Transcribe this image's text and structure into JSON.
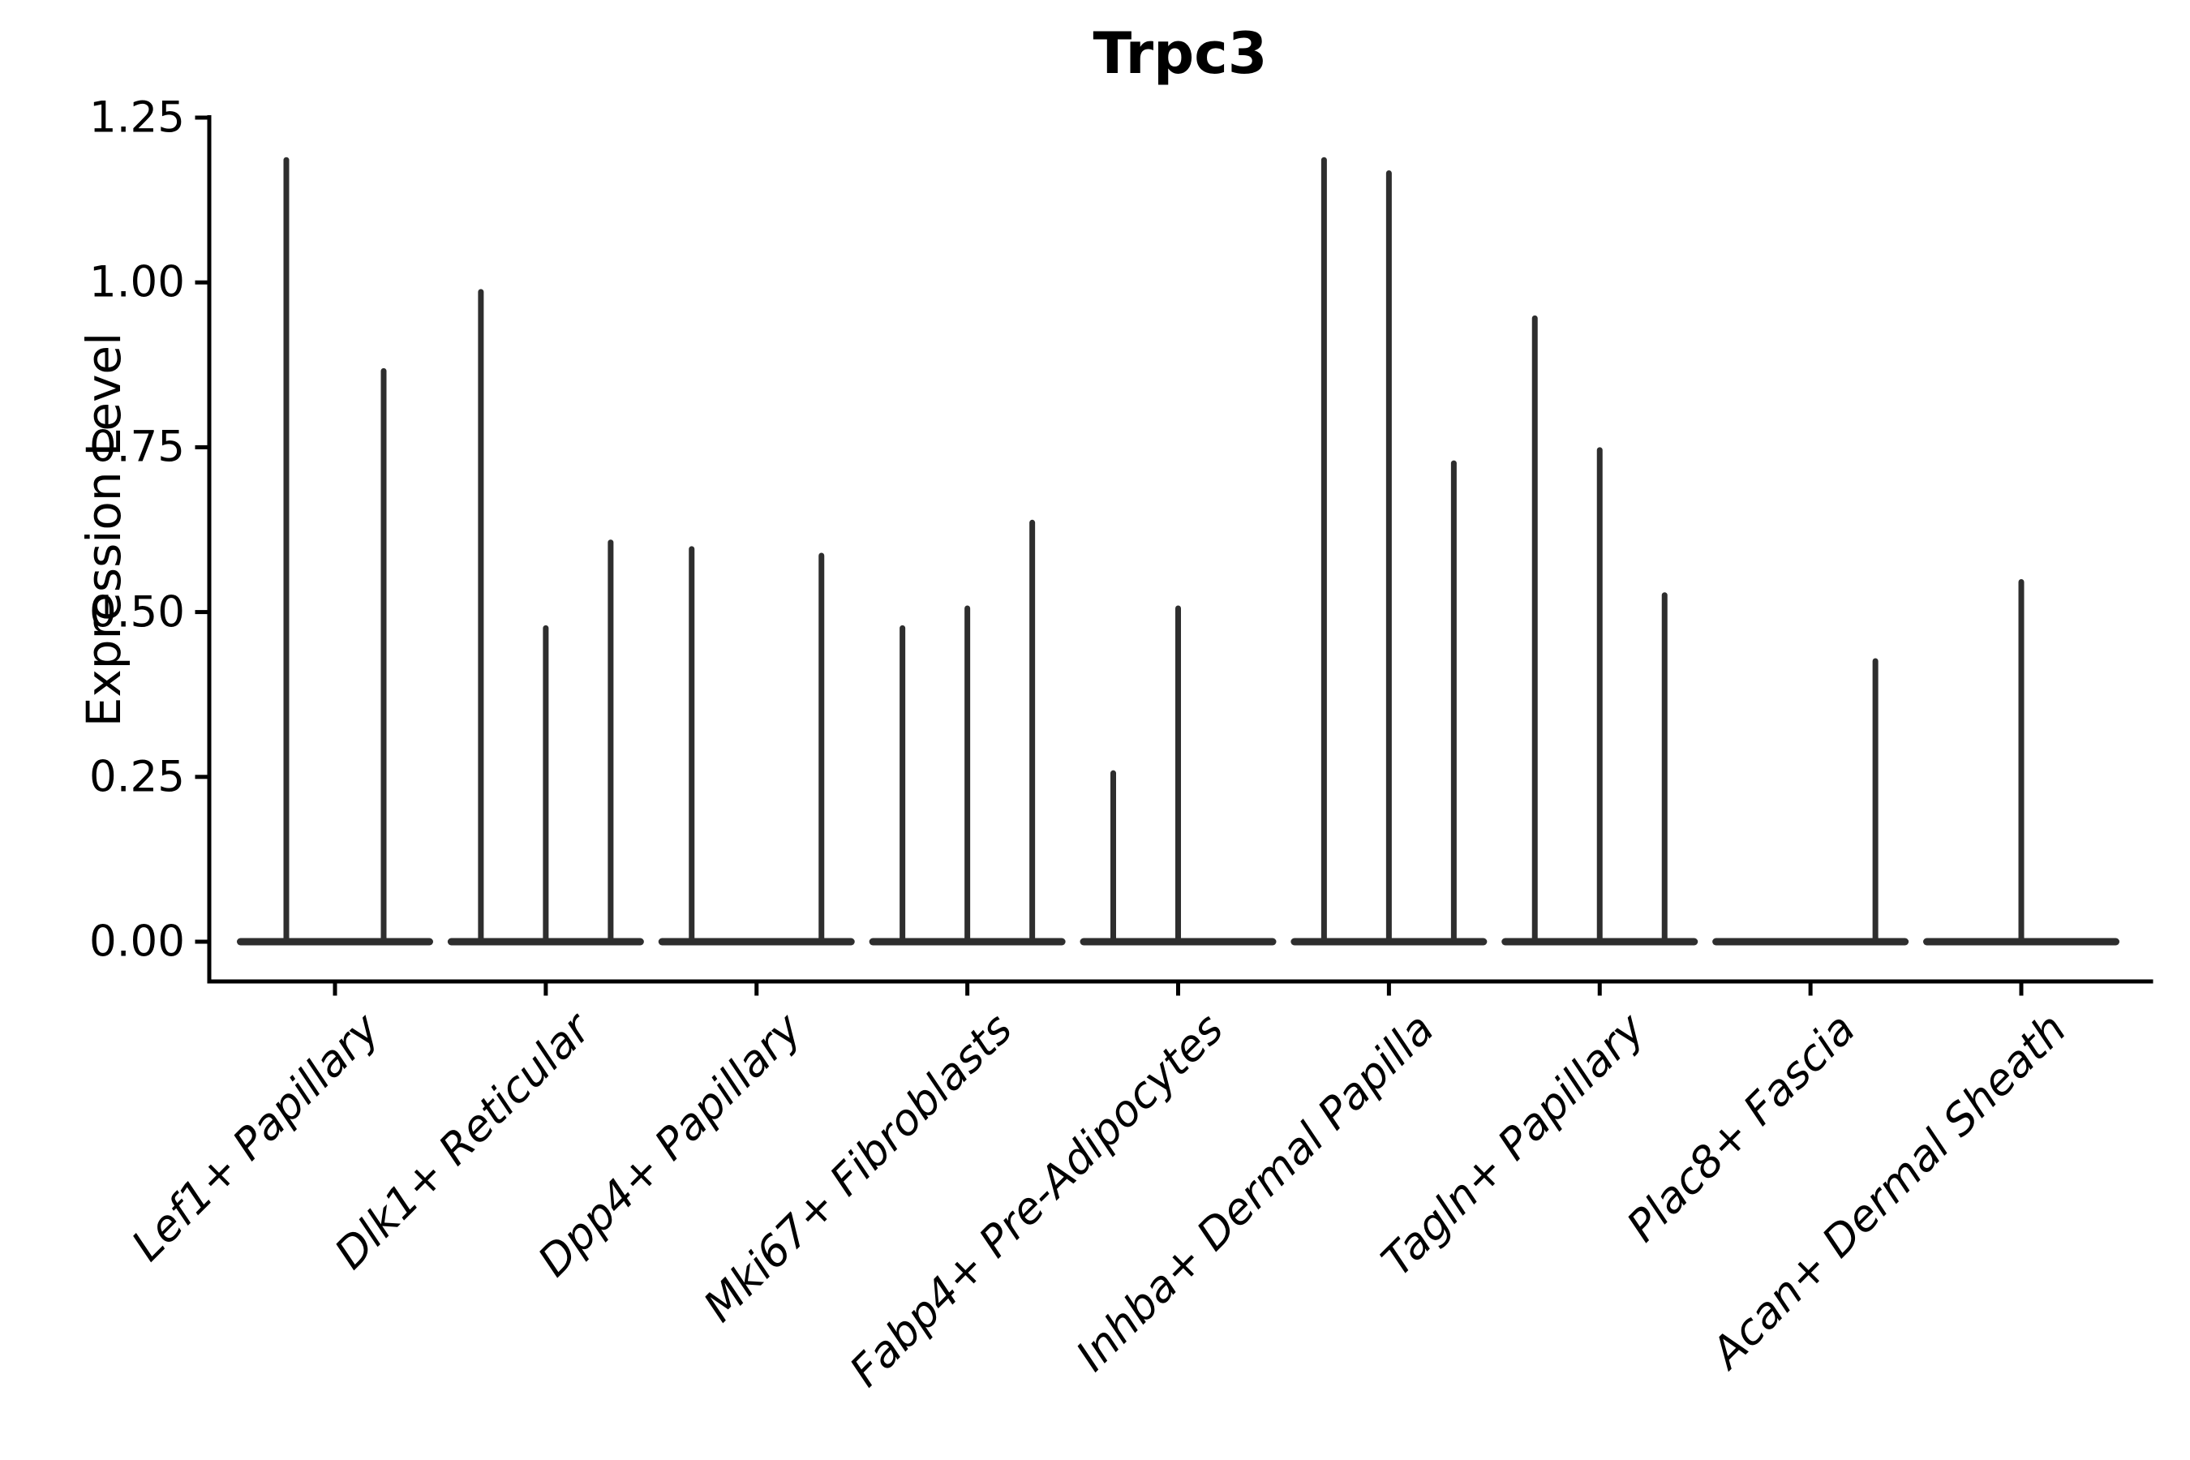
{
  "figure": {
    "background": "#ffffff"
  },
  "colors": {
    "violin_ink": "#2e2e2e",
    "axis_ink": "#000000",
    "text_ink": "#000000"
  },
  "chart_data": {
    "type": "violin",
    "title": "Trpc3",
    "xlabel": "",
    "ylabel": "Expression Level",
    "ylim": [
      -0.06,
      1.28
    ],
    "grid": false,
    "legend": "none",
    "yticks": [
      0.0,
      0.25,
      0.5,
      0.75,
      1.0,
      1.25
    ],
    "ytick_labels": [
      "0.00",
      "0.25",
      "0.50",
      "0.75",
      "1.00",
      "1.25"
    ],
    "categories": [
      "Lef1+ Papillary",
      "Dlk1+ Reticular",
      "Dpp4+ Papillary",
      "Mki67+ Fibroblasts",
      "Fabp4+ Pre-Adipocytes",
      "Inhba+ Dermal Papilla",
      "Tagln+ Papillary",
      "Plac8+ Fascia",
      "Acan+ Dermal Sheath"
    ],
    "description": "Collapsed violins: most cells express 0, each violin shows a flat base at 0 with a thin tail up to the max expression value. Each category holds 2-3 split-group violins; 0 means a fully flat violin.",
    "violin_max_expression": [
      [
        1.19,
        0.87
      ],
      [
        0.99,
        0.48,
        0.61
      ],
      [
        0.6,
        0.0,
        0.59
      ],
      [
        0.48,
        0.51,
        0.64
      ],
      [
        0.26,
        0.51,
        0.0
      ],
      [
        1.19,
        1.17,
        0.73
      ],
      [
        0.95,
        0.75,
        0.53
      ],
      [
        0.0,
        0.0,
        0.43
      ],
      [
        0.0,
        0.55,
        0.0
      ]
    ]
  }
}
